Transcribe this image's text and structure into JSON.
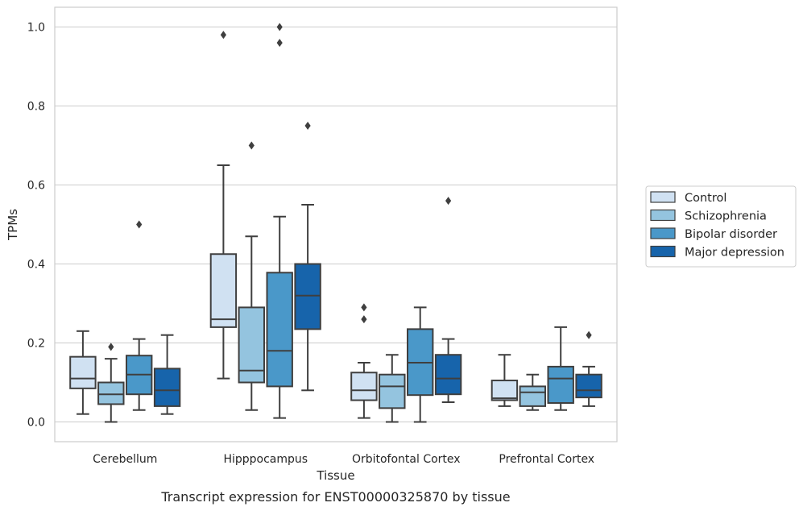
{
  "chart_data": {
    "type": "box",
    "caption": "Transcript expression for ENST00000325870 by tissue",
    "xlabel": "Tissue",
    "ylabel": "TPMs",
    "ylim": [
      -0.05,
      1.05
    ],
    "yticks": [
      0.0,
      0.2,
      0.4,
      0.6,
      0.8,
      1.0
    ],
    "ytick_labels": [
      "0.0",
      "0.2",
      "0.4",
      "0.6",
      "0.8",
      "1.0"
    ],
    "grid": "horizontal",
    "legend_position": "right",
    "categories": [
      "Cerebellum",
      "Hipppocampus",
      "Orbitofontal Cortex",
      "Prefrontal Cortex"
    ],
    "series": [
      {
        "name": "Control",
        "color": "#d0e1f2",
        "boxes": [
          {
            "whisker_low": 0.02,
            "q1": 0.085,
            "median": 0.11,
            "q3": 0.165,
            "whisker_high": 0.23,
            "outliers": []
          },
          {
            "whisker_low": 0.11,
            "q1": 0.24,
            "median": 0.26,
            "q3": 0.425,
            "whisker_high": 0.65,
            "outliers": [
              0.98
            ]
          },
          {
            "whisker_low": 0.01,
            "q1": 0.055,
            "median": 0.08,
            "q3": 0.125,
            "whisker_high": 0.15,
            "outliers": [
              0.26,
              0.29
            ]
          },
          {
            "whisker_low": 0.04,
            "q1": 0.055,
            "median": 0.06,
            "q3": 0.105,
            "whisker_high": 0.17,
            "outliers": []
          }
        ]
      },
      {
        "name": "Schizophrenia",
        "color": "#94c4df",
        "boxes": [
          {
            "whisker_low": 0.0,
            "q1": 0.045,
            "median": 0.07,
            "q3": 0.1,
            "whisker_high": 0.16,
            "outliers": [
              0.19
            ]
          },
          {
            "whisker_low": 0.03,
            "q1": 0.1,
            "median": 0.13,
            "q3": 0.29,
            "whisker_high": 0.47,
            "outliers": [
              0.7
            ]
          },
          {
            "whisker_low": 0.0,
            "q1": 0.035,
            "median": 0.09,
            "q3": 0.12,
            "whisker_high": 0.17,
            "outliers": []
          },
          {
            "whisker_low": 0.03,
            "q1": 0.04,
            "median": 0.075,
            "q3": 0.09,
            "whisker_high": 0.12,
            "outliers": []
          }
        ]
      },
      {
        "name": "Bipolar disorder",
        "color": "#4a98c9",
        "boxes": [
          {
            "whisker_low": 0.03,
            "q1": 0.07,
            "median": 0.12,
            "q3": 0.168,
            "whisker_high": 0.21,
            "outliers": [
              0.5
            ]
          },
          {
            "whisker_low": 0.01,
            "q1": 0.09,
            "median": 0.18,
            "q3": 0.378,
            "whisker_high": 0.52,
            "outliers": [
              0.96,
              1.0
            ]
          },
          {
            "whisker_low": 0.0,
            "q1": 0.068,
            "median": 0.15,
            "q3": 0.235,
            "whisker_high": 0.29,
            "outliers": []
          },
          {
            "whisker_low": 0.03,
            "q1": 0.048,
            "median": 0.11,
            "q3": 0.14,
            "whisker_high": 0.24,
            "outliers": []
          }
        ]
      },
      {
        "name": "Major depression",
        "color": "#1764ab",
        "boxes": [
          {
            "whisker_low": 0.02,
            "q1": 0.04,
            "median": 0.08,
            "q3": 0.135,
            "whisker_high": 0.22,
            "outliers": []
          },
          {
            "whisker_low": 0.08,
            "q1": 0.235,
            "median": 0.32,
            "q3": 0.4,
            "whisker_high": 0.55,
            "outliers": [
              0.75
            ]
          },
          {
            "whisker_low": 0.05,
            "q1": 0.07,
            "median": 0.11,
            "q3": 0.17,
            "whisker_high": 0.21,
            "outliers": [
              0.56
            ]
          },
          {
            "whisker_low": 0.04,
            "q1": 0.062,
            "median": 0.08,
            "q3": 0.12,
            "whisker_high": 0.14,
            "outliers": [
              0.22
            ]
          }
        ]
      }
    ]
  }
}
